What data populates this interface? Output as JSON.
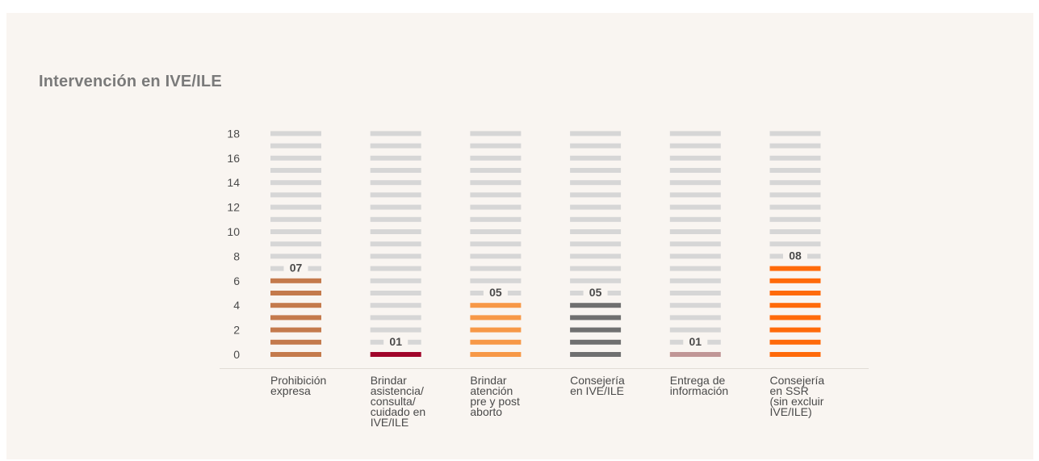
{
  "page": {
    "title": "Intervención en IVE/ILE"
  },
  "chart_data": {
    "type": "bar",
    "title": "Intervención en IVE/ILE",
    "categories": [
      "Prohibición\nexpresa",
      "Brindar\nasistencia/\nconsulta/\ncuidado en\nIVE/ILE",
      "Brindar\natención\npre y post\naborto",
      "Consejería\nen IVE/ILE",
      "Entrega de\ninformación",
      "Consejería\nen SSR\n(sin excluir\nIVE/ILE)"
    ],
    "values": [
      7,
      1,
      5,
      5,
      1,
      8
    ],
    "value_labels": [
      "07",
      "01",
      "05",
      "05",
      "01",
      "08"
    ],
    "colors": [
      "#c47a4c",
      "#a0052a",
      "#f79847",
      "#707070",
      "#c09696",
      "#ff6a0a"
    ],
    "empty_color": "#d6d6d6",
    "yticks": [
      "0",
      "2",
      "4",
      "6",
      "8",
      "10",
      "12",
      "14",
      "16",
      "18"
    ],
    "ylim": [
      0,
      18
    ],
    "xlabel": "",
    "ylabel": ""
  }
}
